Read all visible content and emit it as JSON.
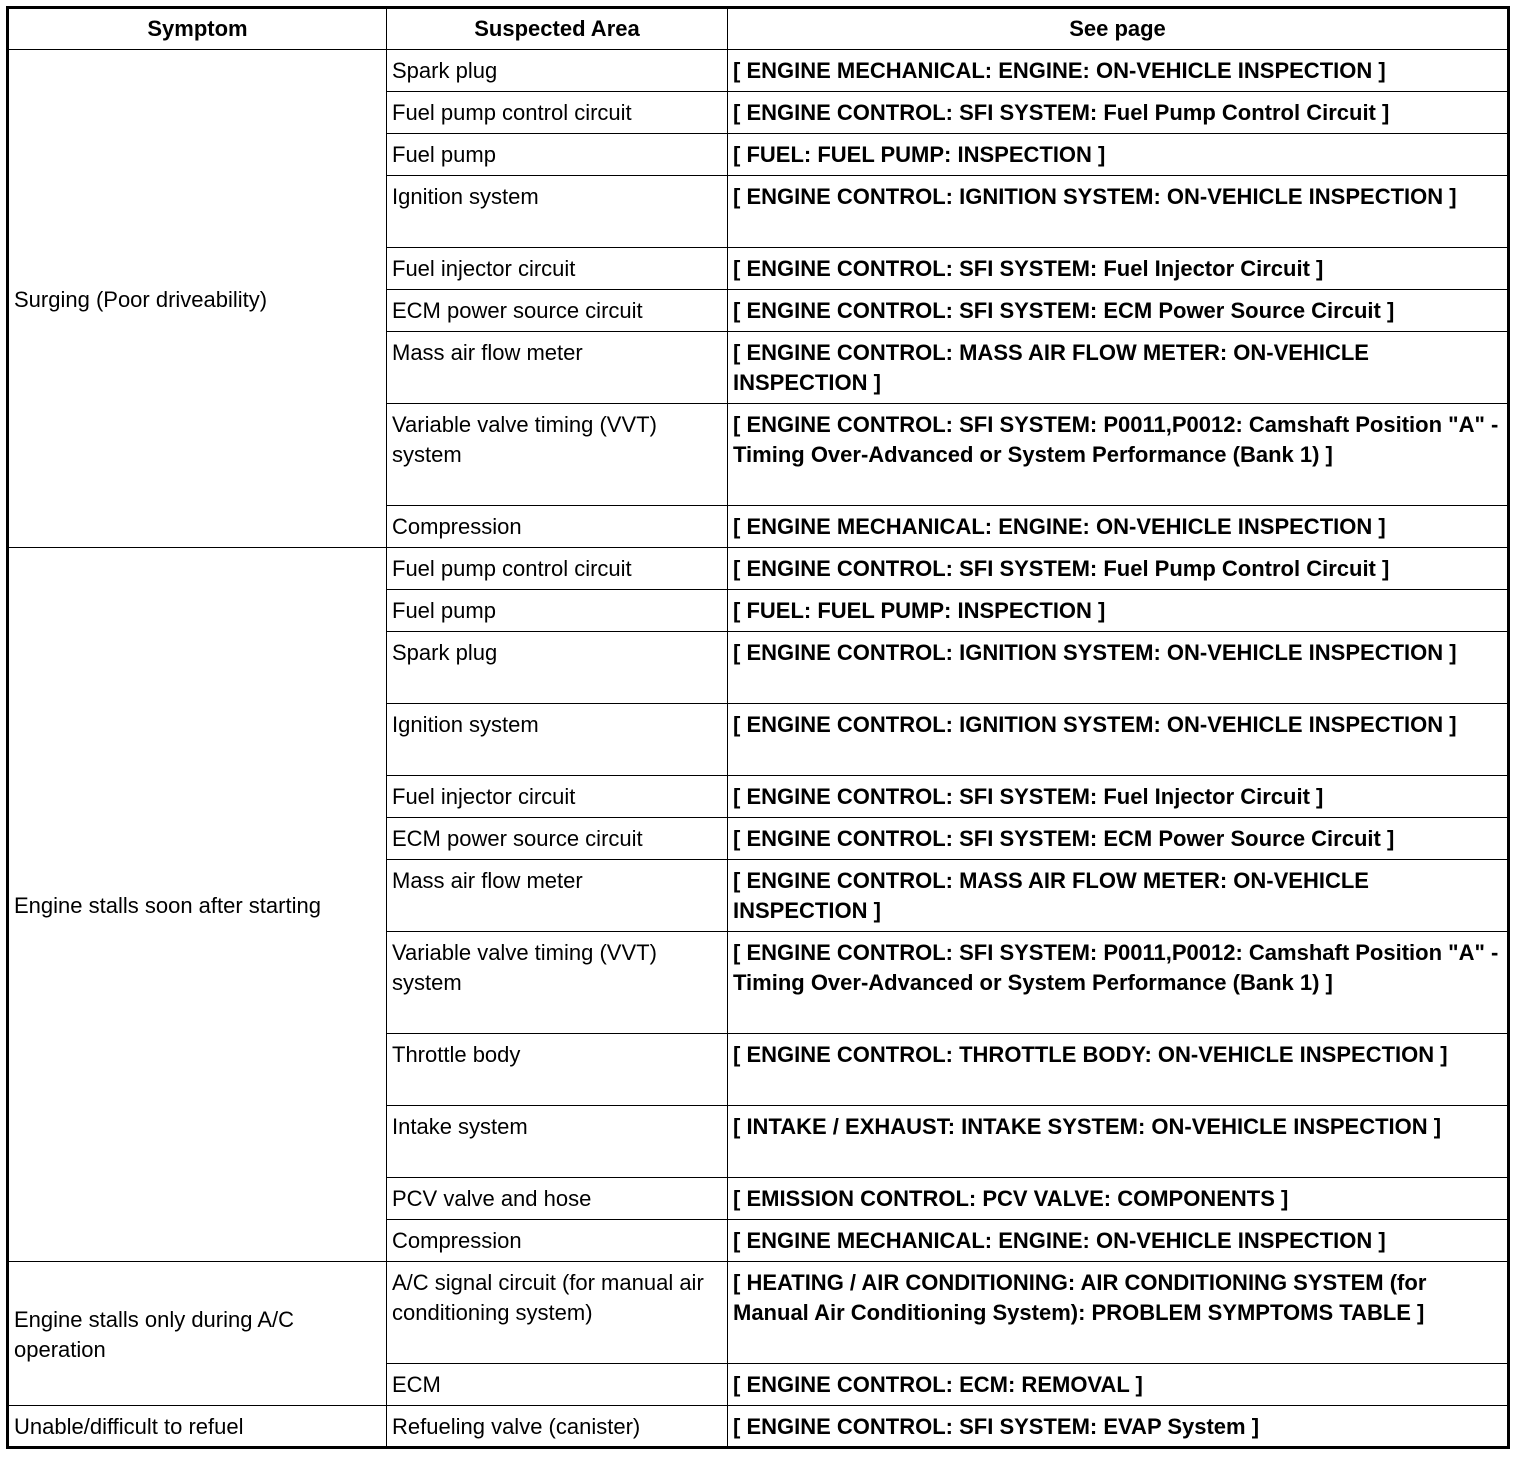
{
  "headers": [
    "Symptom",
    "Suspected Area",
    "See page"
  ],
  "groups": [
    {
      "symptom": "Surging (Poor driveability)",
      "rows": [
        {
          "area": "Spark plug",
          "page": "[ ENGINE MECHANICAL: ENGINE: ON-VEHICLE INSPECTION ]"
        },
        {
          "area": "Fuel pump control circuit",
          "page": "[ ENGINE CONTROL: SFI SYSTEM: Fuel Pump Control Circuit ]"
        },
        {
          "area": "Fuel pump",
          "page": "[ FUEL: FUEL PUMP: INSPECTION ]"
        },
        {
          "area": "Ignition system",
          "page": "[ ENGINE CONTROL: IGNITION SYSTEM: ON-VEHICLE INSPECTION ]"
        },
        {
          "area": "Fuel injector circuit",
          "page": "[ ENGINE CONTROL: SFI SYSTEM: Fuel Injector Circuit ]"
        },
        {
          "area": "ECM power source circuit",
          "page": "[ ENGINE CONTROL: SFI SYSTEM: ECM Power Source Circuit ]"
        },
        {
          "area": "Mass air flow meter",
          "page": "[ ENGINE CONTROL: MASS AIR FLOW METER: ON-VEHICLE INSPECTION ]"
        },
        {
          "area": "Variable valve timing (VVT) system",
          "page": "[ ENGINE CONTROL: SFI SYSTEM: P0011,P0012: Camshaft Position \"A\" - Timing Over-Advanced or System Performance (Bank 1) ]"
        },
        {
          "area": "Compression",
          "page": "[ ENGINE MECHANICAL: ENGINE: ON-VEHICLE INSPECTION ]"
        }
      ]
    },
    {
      "symptom": "Engine stalls soon after starting",
      "rows": [
        {
          "area": "Fuel pump control circuit",
          "page": "[ ENGINE CONTROL: SFI SYSTEM: Fuel Pump Control Circuit ]"
        },
        {
          "area": "Fuel pump",
          "page": "[ FUEL: FUEL PUMP: INSPECTION ]"
        },
        {
          "area": "Spark plug",
          "page": "[ ENGINE CONTROL: IGNITION SYSTEM: ON-VEHICLE INSPECTION ]"
        },
        {
          "area": "Ignition system",
          "page": "[ ENGINE CONTROL: IGNITION SYSTEM: ON-VEHICLE INSPECTION ]"
        },
        {
          "area": "Fuel injector circuit",
          "page": "[ ENGINE CONTROL: SFI SYSTEM: Fuel Injector Circuit ]"
        },
        {
          "area": "ECM power source circuit",
          "page": "[ ENGINE CONTROL: SFI SYSTEM: ECM Power Source Circuit ]"
        },
        {
          "area": "Mass air flow meter",
          "page": "[ ENGINE CONTROL: MASS AIR FLOW METER: ON-VEHICLE INSPECTION ]"
        },
        {
          "area": "Variable valve timing (VVT) system",
          "page": "[ ENGINE CONTROL: SFI SYSTEM: P0011,P0012: Camshaft Position \"A\" - Timing Over-Advanced or System Performance (Bank 1) ]"
        },
        {
          "area": "Throttle body",
          "page": "[ ENGINE CONTROL: THROTTLE BODY: ON-VEHICLE INSPECTION ]"
        },
        {
          "area": "Intake system",
          "page": "[ INTAKE / EXHAUST: INTAKE SYSTEM: ON-VEHICLE INSPECTION ]"
        },
        {
          "area": "PCV valve and hose",
          "page": "[ EMISSION CONTROL: PCV VALVE: COMPONENTS ]"
        },
        {
          "area": "Compression",
          "page": "[ ENGINE MECHANICAL: ENGINE: ON-VEHICLE INSPECTION ]"
        }
      ]
    },
    {
      "symptom": "Engine stalls only during A/C operation",
      "rows": [
        {
          "area": "A/C signal circuit (for manual air conditioning system)",
          "page": "[ HEATING / AIR CONDITIONING: AIR CONDITIONING SYSTEM (for Manual Air Conditioning System): PROBLEM SYMPTOMS TABLE ]"
        },
        {
          "area": "ECM",
          "page": "[ ENGINE CONTROL: ECM: REMOVAL ]"
        }
      ]
    },
    {
      "symptom": "Unable/difficult to refuel",
      "rows": [
        {
          "area": "Refueling valve (canister)",
          "page": "[ ENGINE CONTROL: SFI SYSTEM: EVAP System ]"
        }
      ]
    }
  ]
}
